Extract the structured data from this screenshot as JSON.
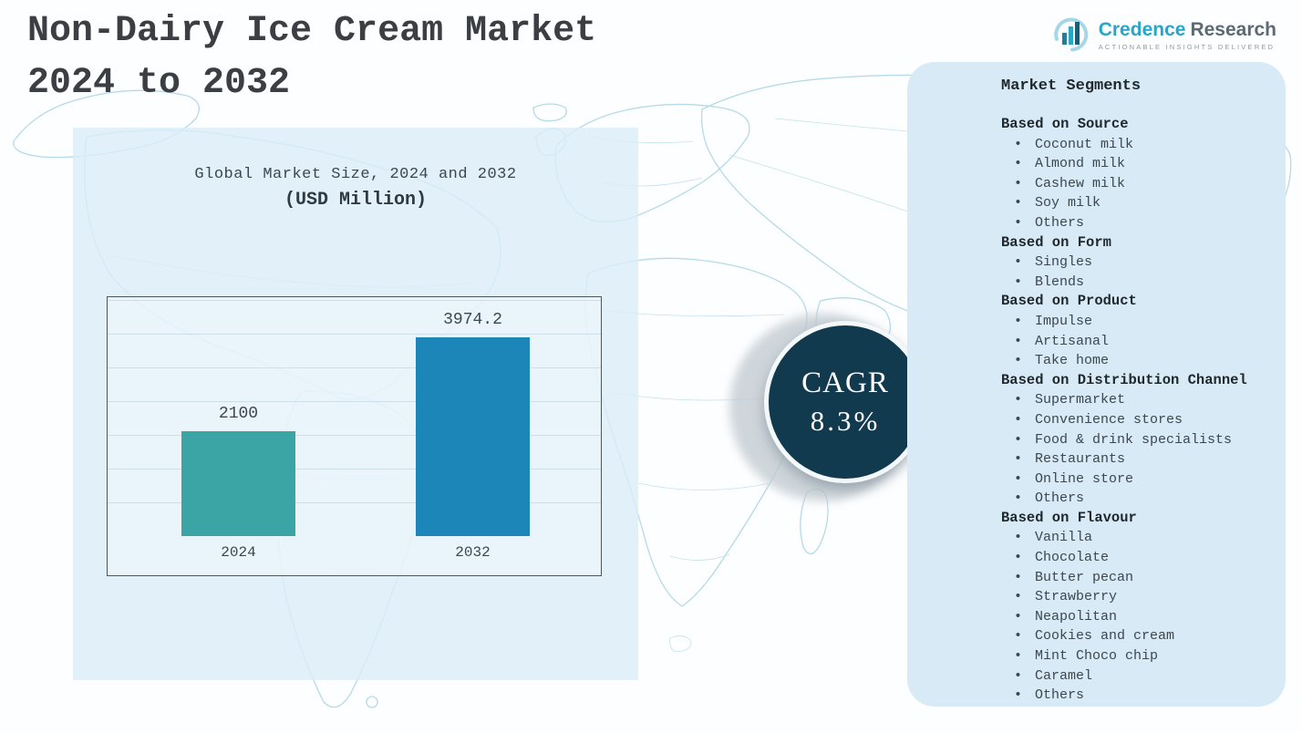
{
  "page": {
    "title_line1": "Non-Dairy Ice Cream Market",
    "title_line2": "2024 to 2032"
  },
  "logo": {
    "brand_primary": "Credence",
    "brand_secondary": "Research",
    "tagline": "Actionable Insights Delivered"
  },
  "cagr": {
    "label": "CAGR",
    "value": "8.3%"
  },
  "chart_data": {
    "type": "bar",
    "title": "Global Market Size, 2024 and 2032",
    "subtitle": "(USD Million)",
    "categories": [
      "2024",
      "2032"
    ],
    "values": [
      2100,
      3974.2
    ],
    "value_labels": [
      "2100",
      "3974.2"
    ],
    "bar_colors": [
      "#3ba5a5",
      "#1d86b8"
    ],
    "ylabel": "",
    "xlabel": "",
    "ylim": [
      0,
      4000
    ],
    "grid": true,
    "legend": false
  },
  "segments": {
    "heading": "Market Segments",
    "bullet": "•",
    "groups": [
      {
        "title": "Based on Source",
        "items": [
          "Coconut milk",
          "Almond milk",
          "Cashew milk",
          "Soy milk",
          "Others"
        ]
      },
      {
        "title": "Based on Form",
        "items": [
          "Singles",
          "Blends"
        ]
      },
      {
        "title": "Based on Product",
        "items": [
          "Impulse",
          "Artisanal",
          "Take home"
        ]
      },
      {
        "title": "Based on Distribution Channel",
        "items": [
          "Supermarket",
          "Convenience stores",
          "Food & drink specialists",
          "Restaurants",
          "Online store",
          "Others"
        ]
      },
      {
        "title": "Based on Flavour",
        "items": [
          "Vanilla",
          "Chocolate",
          "Butter pecan",
          "Strawberry",
          "Neapolitan",
          "Cookies and cream",
          "Mint Choco chip",
          "Caramel",
          "Others"
        ]
      }
    ]
  },
  "colors": {
    "bar_2024": "#3ba5a5",
    "bar_2032": "#1d86b8",
    "cagr_circle": "#123a4e",
    "panel_blue": "#d7eaf5",
    "map_line": "#b5dae9",
    "brand_teal": "#28a5c7",
    "brand_slate": "#5c6a74"
  }
}
